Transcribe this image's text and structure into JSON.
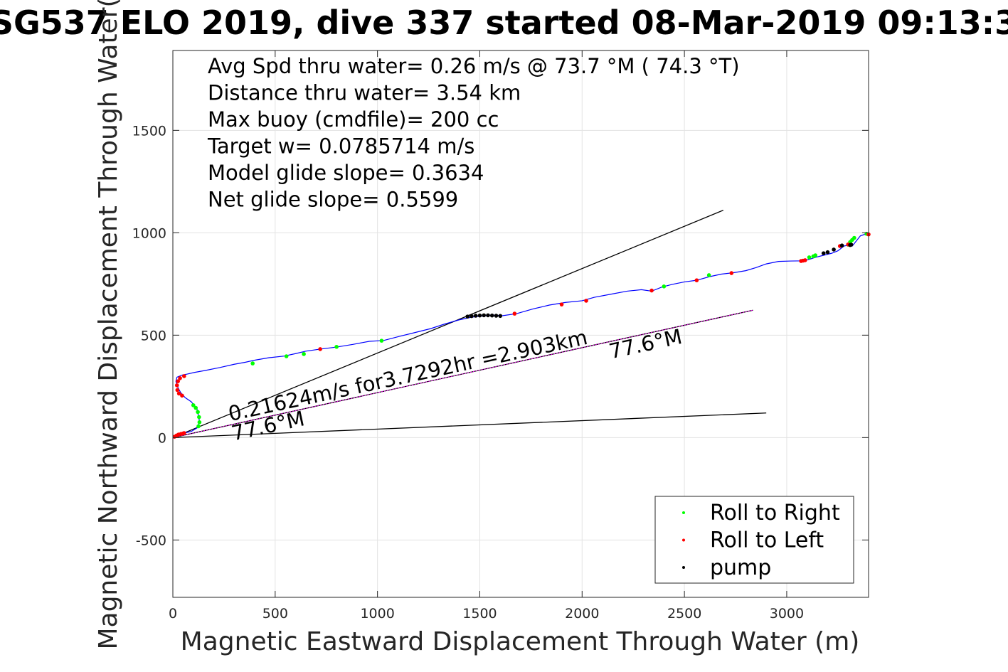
{
  "chart_data": {
    "type": "scatter",
    "title": "SG537 ELO 2019, dive 337 started 08-Mar-2019 09:13:3",
    "xlabel": "Magnetic Eastward Displacement Through Water (m)",
    "ylabel": "Magnetic Northward Displacement Through Water(",
    "xlim": [
      0,
      3400
    ],
    "ylim": [
      -780,
      1890
    ],
    "xticks": [
      0,
      500,
      1000,
      1500,
      2000,
      2500,
      3000
    ],
    "yticks": [
      -500,
      0,
      500,
      1000,
      1500
    ],
    "grid": true,
    "info_lines": [
      "Avg Spd thru water=  0.26 m/s @  73.7 °M ( 74.3 °T)",
      "Distance thru water=  3.54 km",
      "Max buoy (cmdfile)= 200 cc",
      "Target w= 0.0785714 m/s",
      "Model glide slope= 0.3634",
      "Net glide slope= 0.5599"
    ],
    "annotations": [
      {
        "text": "0.21624m/s for3.7292hr =2.903km",
        "x": 280,
        "y": 80,
        "angle_deg": 12.2
      },
      {
        "text": "77.6°M",
        "x": 295,
        "y": -15,
        "angle_deg": 12.2
      },
      {
        "text": "77.6°M",
        "x": 2140,
        "y": 385,
        "angle_deg": 12.2
      }
    ],
    "reference_lines": [
      {
        "name": "upper bound",
        "x": [
          0,
          2690
        ],
        "y": [
          0,
          1110
        ]
      },
      {
        "name": "lower bound",
        "x": [
          0,
          2900
        ],
        "y": [
          0,
          120
        ]
      },
      {
        "name": "net course",
        "x": [
          0,
          2835
        ],
        "y": [
          0,
          622
        ]
      }
    ],
    "series": [
      {
        "name": "track",
        "color": "#0000ff",
        "x": [
          0,
          25,
          55,
          90,
          120,
          130,
          118,
          90,
          60,
          38,
          22,
          15,
          20,
          45,
          70,
          105,
          160,
          230,
          300,
          355,
          400,
          470,
          545,
          600,
          650,
          720,
          800,
          880,
          960,
          1030,
          1110,
          1180,
          1260,
          1330,
          1400,
          1460,
          1520,
          1560,
          1610,
          1680,
          1760,
          1840,
          1920,
          2000,
          2060,
          2140,
          2220,
          2290,
          2340,
          2390,
          2440,
          2500,
          2560,
          2620,
          2680,
          2740,
          2800,
          2850,
          2900,
          2960,
          3020,
          3080,
          3110,
          3140,
          3180,
          3220,
          3250,
          3280,
          3300,
          3320,
          3340,
          3360,
          3380,
          3400
        ],
        "y": [
          0,
          12,
          22,
          30,
          48,
          80,
          140,
          175,
          195,
          220,
          250,
          275,
          295,
          305,
          310,
          318,
          328,
          342,
          358,
          368,
          378,
          390,
          398,
          410,
          422,
          432,
          442,
          455,
          470,
          474,
          495,
          512,
          532,
          555,
          575,
          588,
          595,
          598,
          595,
          605,
          628,
          647,
          660,
          668,
          685,
          700,
          715,
          722,
          715,
          735,
          748,
          760,
          768,
          785,
          798,
          805,
          815,
          830,
          848,
          860,
          862,
          863,
          870,
          880,
          890,
          900,
          912,
          935,
          940,
          935,
          960,
          985,
          992,
          990
        ]
      },
      {
        "name": "Roll to Right",
        "color": "#00ff00",
        "x": [
          100,
          112,
          122,
          128,
          130,
          125,
          390,
          555,
          640,
          800,
          1020,
          2400,
          2620,
          3110,
          3130,
          3140,
          3300,
          3310,
          3320,
          3330,
          3390
        ],
        "y": [
          158,
          145,
          125,
          100,
          75,
          55,
          362,
          397,
          408,
          443,
          473,
          738,
          793,
          880,
          885,
          890,
          942,
          955,
          965,
          975,
          995
        ]
      },
      {
        "name": "Roll to Left",
        "color": "#ff0000",
        "x": [
          8,
          18,
          28,
          40,
          50,
          55,
          35,
          25,
          20,
          22,
          30,
          45,
          55,
          720,
          1670,
          1900,
          2020,
          2340,
          2560,
          2730,
          3070,
          3080,
          3090,
          3260,
          3300,
          3400
        ],
        "y": [
          4,
          10,
          15,
          18,
          20,
          22,
          290,
          275,
          255,
          232,
          215,
          205,
          300,
          432,
          605,
          650,
          668,
          718,
          768,
          803,
          862,
          864,
          866,
          935,
          943,
          992
        ]
      },
      {
        "name": "pump",
        "color": "#000000",
        "x": [
          1440,
          1460,
          1480,
          1500,
          1520,
          1540,
          1560,
          1580,
          1600,
          3180,
          3200,
          3230,
          3270,
          3310,
          3315
        ],
        "y": [
          591,
          593,
          595,
          596,
          597,
          597,
          596,
          595,
          594,
          900,
          905,
          918,
          938,
          940,
          942
        ]
      }
    ],
    "legend": {
      "placement": "bottom-right",
      "entries": [
        {
          "label": "Roll to Right",
          "color": "#00ff00"
        },
        {
          "label": "Roll to Left",
          "color": "#ff0000"
        },
        {
          "label": "pump",
          "color": "#000000"
        }
      ]
    }
  }
}
